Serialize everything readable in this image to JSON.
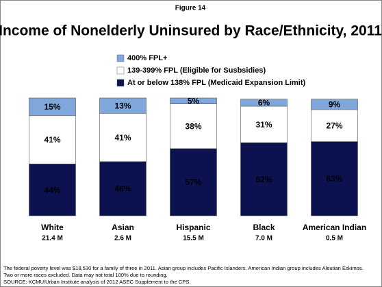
{
  "figure_label": "Figure 14",
  "chart_data": {
    "type": "stacked_bar",
    "title": "Income of Nonelderly Uninsured by Race/Ethnicity, 2011",
    "categories": [
      "White",
      "Asian",
      "Hispanic",
      "Black",
      "American Indian"
    ],
    "category_notes": [
      "21.4 M",
      "2.6 M",
      "15.5 M",
      "7.0 M",
      "0.5 M"
    ],
    "ylim": [
      0,
      100
    ],
    "series": [
      {
        "name": "At or below 138% FPL (Medicaid Expansion Limit)",
        "color": "#0c1150",
        "label_color": "#ffffff",
        "values": [
          44,
          46,
          57,
          62,
          63
        ],
        "value_labels": [
          "44%",
          "46%",
          "57%",
          "62%",
          "63%"
        ]
      },
      {
        "name": "139-399% FPL (Eligible for Susbsidies)",
        "color": "#ffffff",
        "label_color": "#000000",
        "values": [
          41,
          41,
          38,
          31,
          27
        ],
        "value_labels": [
          "41%",
          "41%",
          "38%",
          "31%",
          "27%"
        ]
      },
      {
        "name": "400% FPL+",
        "color": "#7fa7dc",
        "label_color": "#000000",
        "values": [
          15,
          13,
          5,
          6,
          9
        ],
        "value_labels": [
          "15%",
          "13%",
          "5%",
          "6%",
          "9%"
        ]
      }
    ]
  },
  "footnotes": [
    "The federal poverty level was $18,530 for a family of three  in 2011. Asian group includes Pacific Islanders. American Indian group includes Aleutian Eskimos.",
    "Two or more races excluded. Data may not total 100% due to rounding.",
    "SOURCE: KCMU/Urban Institute analysis of 2012 ASEC Supplement to the CPS."
  ]
}
